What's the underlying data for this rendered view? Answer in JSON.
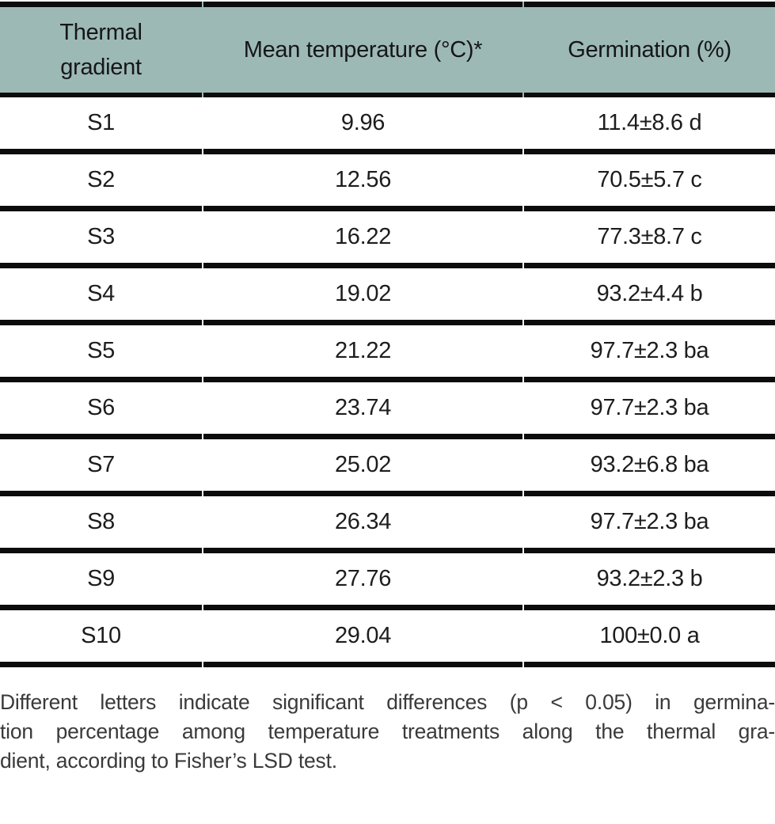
{
  "colors": {
    "header_bg": "#9cb9b6",
    "border": "#0c0c0c",
    "table_text": "#1d1d1f",
    "footnote_text": "#3a3a3a"
  },
  "table": {
    "columns": [
      {
        "label": "Thermal gradient"
      },
      {
        "label": "Mean temperature (°C)*"
      },
      {
        "label": "Germination (%)"
      }
    ],
    "rows": [
      {
        "gradient": "S1",
        "mean_temp": "9.96",
        "germination": "11.4±8.6 d"
      },
      {
        "gradient": "S2",
        "mean_temp": "12.56",
        "germination": "70.5±5.7 c"
      },
      {
        "gradient": "S3",
        "mean_temp": "16.22",
        "germination": "77.3±8.7 c"
      },
      {
        "gradient": "S4",
        "mean_temp": "19.02",
        "germination": "93.2±4.4 b"
      },
      {
        "gradient": "S5",
        "mean_temp": "21.22",
        "germination": "97.7±2.3 ba"
      },
      {
        "gradient": "S6",
        "mean_temp": "23.74",
        "germination": "97.7±2.3 ba"
      },
      {
        "gradient": "S7",
        "mean_temp": "25.02",
        "germination": "93.2±6.8 ba"
      },
      {
        "gradient": "S8",
        "mean_temp": "26.34",
        "germination": "97.7±2.3 ba"
      },
      {
        "gradient": "S9",
        "mean_temp": "27.76",
        "germination": "93.2±2.3 b"
      },
      {
        "gradient": "S10",
        "mean_temp": "29.04",
        "germination": "100±0.0 a"
      }
    ]
  },
  "footnote": {
    "lines": [
      "Different letters indicate significant differences (p < 0.05) in germina-",
      "tion percentage among temperature treatments along the thermal gra-",
      "dient, according to Fisher’s LSD test."
    ]
  }
}
